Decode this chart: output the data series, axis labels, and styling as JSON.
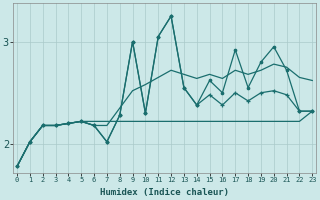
{
  "xlabel": "Humidex (Indice chaleur)",
  "background_color": "#cce8e8",
  "grid_color": "#aacaca",
  "line_color": "#1a6e6e",
  "x_ticks": [
    0,
    1,
    2,
    3,
    4,
    5,
    6,
    7,
    8,
    9,
    10,
    11,
    12,
    13,
    14,
    15,
    16,
    17,
    18,
    19,
    20,
    21,
    22,
    23
  ],
  "y_ticks": [
    2,
    3
  ],
  "ylim": [
    1.72,
    3.38
  ],
  "xlim": [
    -0.3,
    23.3
  ],
  "line1_y": [
    1.78,
    2.02,
    2.18,
    2.18,
    2.2,
    2.22,
    2.18,
    2.02,
    2.28,
    3.0,
    2.3,
    3.05,
    3.25,
    2.55,
    2.38,
    2.48,
    2.38,
    2.5,
    2.42,
    2.5,
    2.52,
    2.48,
    2.32,
    2.32
  ],
  "line2_y": [
    1.78,
    2.02,
    2.18,
    2.18,
    2.2,
    2.22,
    2.18,
    2.02,
    2.28,
    3.0,
    2.3,
    3.05,
    3.25,
    2.55,
    2.38,
    2.62,
    2.5,
    2.92,
    2.55,
    2.8,
    2.95,
    2.72,
    2.32,
    2.32
  ],
  "line3_y": [
    1.78,
    2.02,
    2.18,
    2.18,
    2.2,
    2.22,
    2.18,
    2.18,
    2.35,
    2.52,
    2.58,
    2.65,
    2.72,
    2.68,
    2.64,
    2.68,
    2.64,
    2.72,
    2.68,
    2.72,
    2.78,
    2.75,
    2.65,
    2.62
  ],
  "line4_y": [
    1.78,
    2.02,
    2.18,
    2.18,
    2.2,
    2.22,
    2.22,
    2.22,
    2.22,
    2.22,
    2.22,
    2.22,
    2.22,
    2.22,
    2.22,
    2.22,
    2.22,
    2.22,
    2.22,
    2.22,
    2.22,
    2.22,
    2.22,
    2.32
  ]
}
